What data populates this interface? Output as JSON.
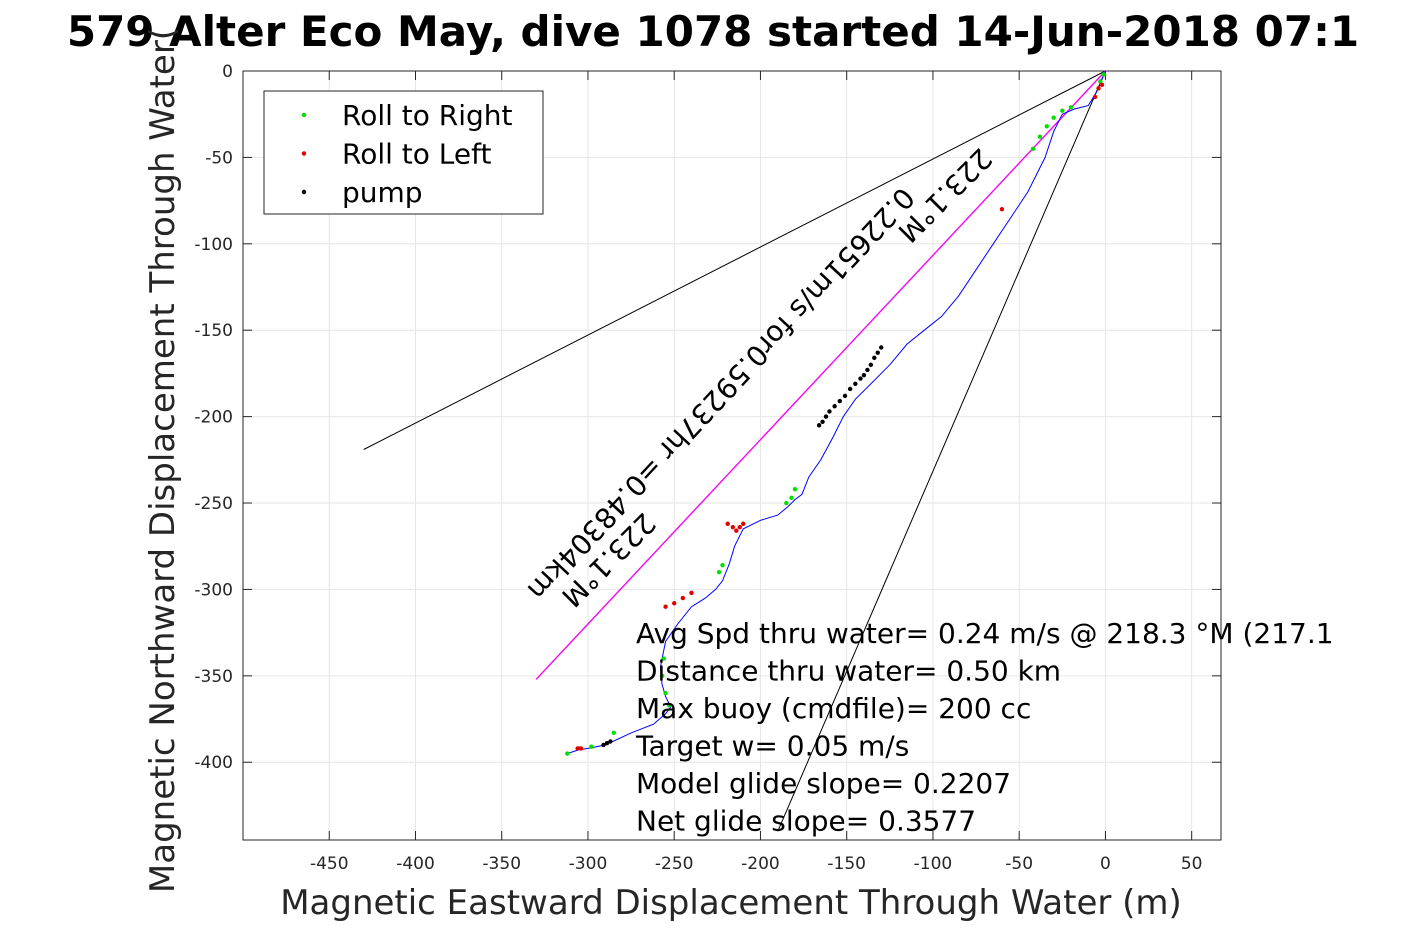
{
  "chart_data": {
    "type": "line",
    "title": "579 Alter Eco May, dive 1078 started 14-Jun-2018 07:1",
    "xlabel": "Magnetic Eastward Displacement Through Water (m)",
    "ylabel": "Magnetic Northward Displacement Through Water(",
    "xlim": [
      -500,
      67
    ],
    "ylim": [
      -445,
      0
    ],
    "xticks": [
      -450,
      -400,
      -350,
      -300,
      -250,
      -200,
      -150,
      -100,
      -50,
      0,
      50
    ],
    "yticks": [
      0,
      -50,
      -100,
      -150,
      -200,
      -250,
      -300,
      -350,
      -400
    ],
    "grid": true,
    "legend_placement": "top-left",
    "legend": [
      {
        "label": "Roll to Right",
        "color": "#00e000"
      },
      {
        "label": "Roll to Left",
        "color": "#e00000"
      },
      {
        "label": "pump",
        "color": "#000000"
      }
    ],
    "track": {
      "color": "#0000ff",
      "x": [
        0,
        -2,
        -5,
        -10,
        -18,
        -25,
        -30,
        -35,
        -45,
        -55,
        -65,
        -75,
        -85,
        -95,
        -105,
        -115,
        -125,
        -135,
        -145,
        -152,
        -158,
        -165,
        -172,
        -176,
        -180,
        -184,
        -190,
        -200,
        -210,
        -215,
        -218,
        -222,
        -226,
        -232,
        -240,
        -248,
        -255,
        -258,
        -257,
        -255,
        -252,
        -255,
        -262,
        -275,
        -290,
        -300,
        -306,
        -312
      ],
      "y": [
        0,
        -5,
        -12,
        -20,
        -22,
        -25,
        -35,
        -50,
        -70,
        -85,
        -100,
        -115,
        -130,
        -142,
        -150,
        -158,
        -170,
        -180,
        -190,
        -200,
        -212,
        -225,
        -235,
        -245,
        -248,
        -252,
        -257,
        -260,
        -265,
        -275,
        -285,
        -295,
        -300,
        -305,
        -310,
        -320,
        -330,
        -345,
        -355,
        -362,
        -368,
        -372,
        -378,
        -383,
        -390,
        -392,
        -393,
        -395
      ]
    },
    "roll_right_points": {
      "x": [
        -1,
        -3,
        -20,
        -25,
        -30,
        -34,
        -38,
        -42,
        -180,
        -182,
        -185,
        -222,
        -224,
        -256,
        -257,
        -255,
        -253,
        -285,
        -298,
        -305,
        -312
      ],
      "y": [
        -2,
        -6,
        -21,
        -23,
        -27,
        -32,
        -38,
        -45,
        -242,
        -247,
        -250,
        -286,
        -290,
        -340,
        -350,
        -360,
        -367,
        -383,
        -391,
        -392,
        -395
      ]
    },
    "roll_left_points": {
      "x": [
        -2,
        -4,
        -6,
        -210,
        -212,
        -214,
        -216,
        -219,
        -240,
        -245,
        -250,
        -255,
        -60,
        -304,
        -306
      ],
      "y": [
        -8,
        -10,
        -15,
        -262,
        -264,
        -266,
        -264,
        -262,
        -302,
        -305,
        -308,
        -310,
        -80,
        -392,
        -392
      ]
    },
    "pump_points": {
      "x": [
        -130,
        -132,
        -134,
        -136,
        -138,
        -140,
        -142,
        -145,
        -148,
        -151,
        -154,
        -157,
        -160,
        -162,
        -164,
        -166,
        -287,
        -289,
        -291
      ],
      "y": [
        -160,
        -163,
        -166,
        -170,
        -173,
        -176,
        -178,
        -181,
        -184,
        -188,
        -191,
        -194,
        -197,
        -200,
        -203,
        -205,
        -388,
        -389,
        -390
      ]
    },
    "heading_line": {
      "color": "#ff00ff",
      "x": [
        0,
        -330
      ],
      "y": [
        0,
        -352
      ]
    },
    "cone_lines": [
      {
        "color": "#000000",
        "x": [
          0,
          -430
        ],
        "y": [
          0,
          -219
        ]
      },
      {
        "color": "#000000",
        "x": [
          0,
          -330
        ],
        "y": [
          0,
          -352
        ]
      },
      {
        "color": "#000000",
        "x": [
          0,
          -190
        ],
        "y": [
          0,
          -440
        ]
      }
    ],
    "rotated_labels": [
      {
        "text": "223.1°M",
        "anchor_x": -97,
        "anchor_y": -68,
        "angle_deg": 135
      },
      {
        "text": "0.22651m/s for0.59237hr =0.48304km",
        "anchor_x": -227,
        "anchor_y": -183,
        "angle_deg": 133
      },
      {
        "text": "223.1°M",
        "anchor_x": -292,
        "anchor_y": -279,
        "angle_deg": 135
      }
    ],
    "annotations": [
      "Avg Spd thru water=  0.24 m/s @ 218.3 °M (217.1",
      "Distance thru water=  0.50 km",
      "Max buoy (cmdfile)= 200 cc",
      "Target w= 0.05 m/s",
      "Model glide slope= 0.2207",
      "Net glide slope= 0.3577"
    ]
  }
}
